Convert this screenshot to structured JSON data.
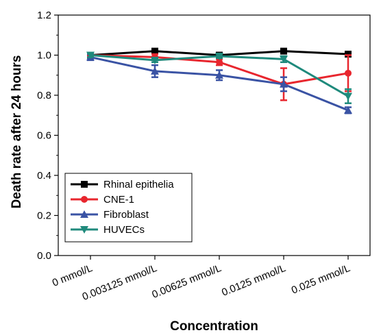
{
  "chart_data": {
    "type": "line",
    "title": "",
    "xlabel": "Concentration",
    "ylabel": "Death rate after 24 hours",
    "categories": [
      "0 mmol/L",
      "0.003125 mmol/L",
      "0.00625 mmol/L",
      "0.0125 mmol/L",
      "0.025 mmol/L"
    ],
    "ylim": [
      0.0,
      1.2
    ],
    "yticks": [
      "0.0",
      "0.2",
      "0.4",
      "0.6",
      "0.8",
      "1.0",
      "1.2"
    ],
    "grid": false,
    "legend_position": "bottom-left",
    "series": [
      {
        "name": "Rhinal epithelia",
        "color": "#000000",
        "marker": "square",
        "values": [
          1.0,
          1.02,
          1.0,
          1.02,
          1.005
        ],
        "errors": [
          0.008,
          0.008,
          0.008,
          0.008,
          0.008
        ]
      },
      {
        "name": "CNE-1",
        "color": "#e8262e",
        "marker": "circle",
        "values": [
          1.0,
          0.99,
          0.965,
          0.855,
          0.91
        ],
        "errors": [
          0.01,
          0.015,
          0.015,
          0.08,
          0.09
        ]
      },
      {
        "name": "Fibroblast",
        "color": "#3a53a4",
        "marker": "triangle-up",
        "values": [
          0.99,
          0.92,
          0.9,
          0.855,
          0.725
        ],
        "errors": [
          0.015,
          0.03,
          0.025,
          0.035,
          0.015
        ]
      },
      {
        "name": "HUVECs",
        "color": "#1f8a7c",
        "marker": "triangle-down",
        "values": [
          1.0,
          0.975,
          0.995,
          0.98,
          0.795
        ],
        "errors": [
          0.01,
          0.01,
          0.01,
          0.015,
          0.035
        ]
      }
    ]
  }
}
